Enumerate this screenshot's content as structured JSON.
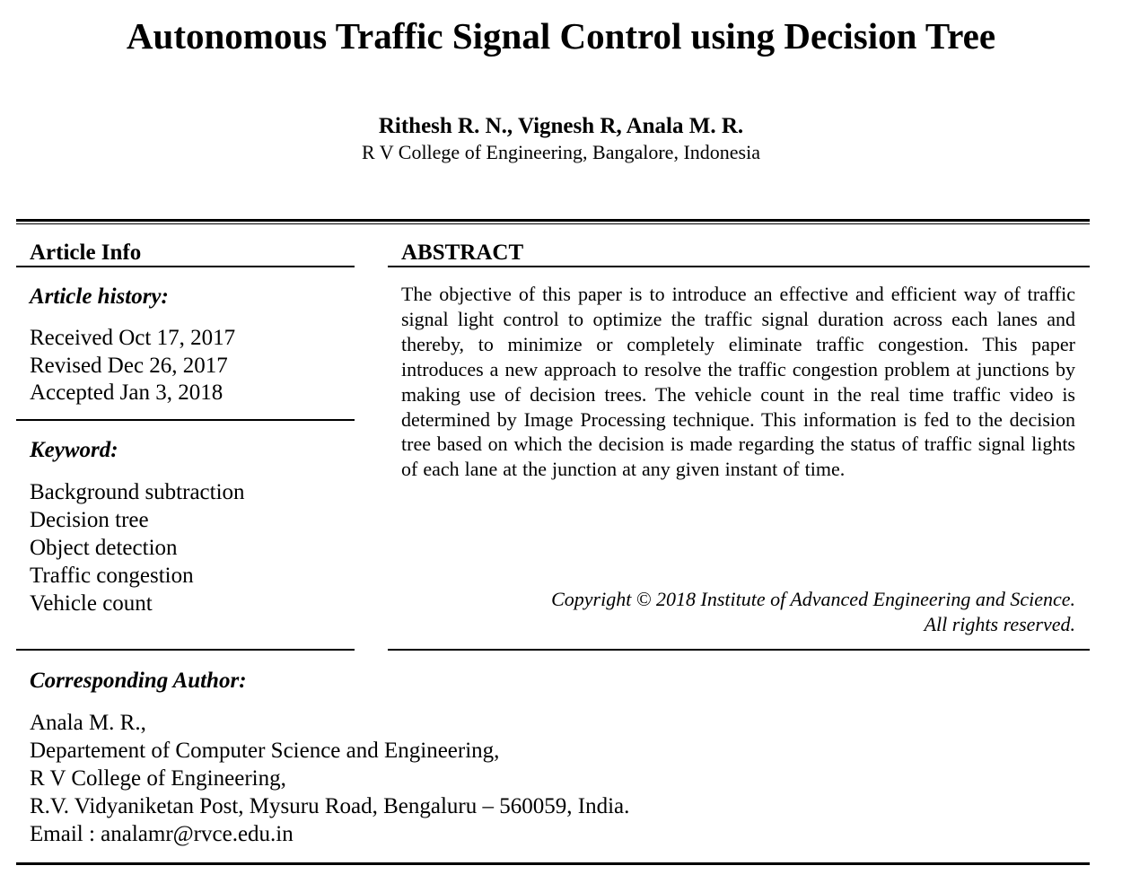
{
  "paper": {
    "title": "Autonomous Traffic Signal Control using Decision Tree",
    "authors": "Rithesh R. N., Vignesh R, Anala M. R.",
    "affiliation": "R V College of Engineering, Bangalore, Indonesia"
  },
  "article_info": {
    "heading": "Article Info",
    "history_heading": "Article history:",
    "history": [
      "Received Oct 17, 2017",
      "Revised Dec 26, 2017",
      "Accepted Jan 3, 2018"
    ],
    "keyword_heading": "Keyword:",
    "keywords": [
      "Background subtraction",
      "Decision tree",
      "Object detection",
      "Traffic congestion",
      "Vehicle count"
    ]
  },
  "abstract": {
    "heading": "ABSTRACT",
    "text": "The objective of this paper is to introduce an effective and efficient way of traffic signal light control to optimize the traffic signal duration across each lanes and thereby, to minimize or completely eliminate traffic congestion. This paper introduces a new approach to resolve the traffic congestion problem at junctions by making use of decision trees. The vehicle count in the real time traffic video is determined by Image Processing technique. This information is fed to the decision tree based on which the decision is made regarding the status of traffic signal lights of each lane at the junction at any given instant of time.",
    "copyright_line1": "Copyright © 2018 Institute of Advanced Engineering and Science.",
    "copyright_line2": "All rights reserved."
  },
  "corresponding_author": {
    "heading": "Corresponding Author:",
    "lines": [
      "Anala M. R.,",
      "Departement of Computer Science and Engineering,",
      "R V College of Engineering,",
      "R.V. Vidyaniketan Post, Mysuru Road, Bengaluru – 560059, India.",
      "Email : analamr@rvce.edu.in"
    ]
  }
}
